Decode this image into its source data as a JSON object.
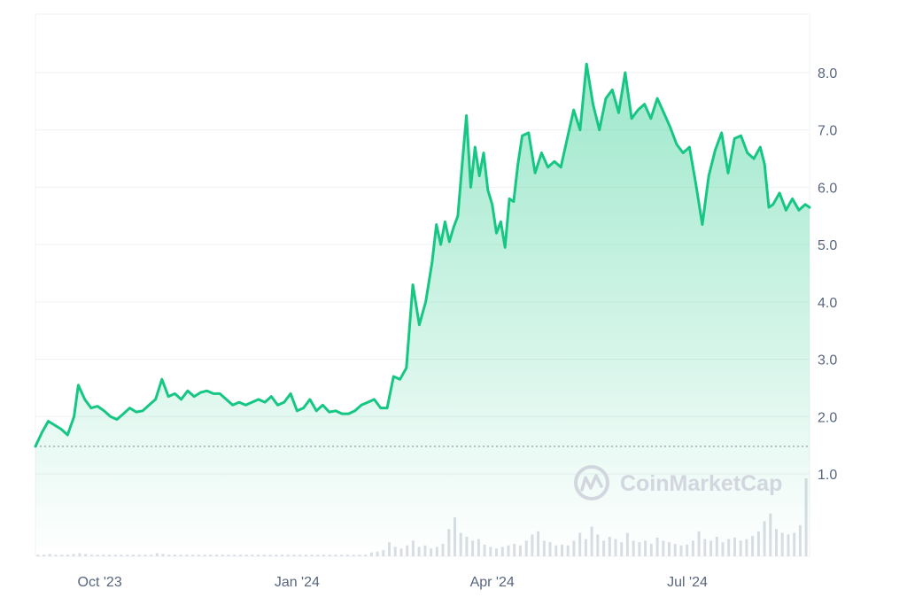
{
  "chart_data": {
    "type": "area",
    "watermark": "CoinMarketCap",
    "y_ticks": [
      "1.0",
      "2.0",
      "3.0",
      "4.0",
      "5.0",
      "6.0",
      "7.0",
      "8.0"
    ],
    "ylim": [
      0,
      9
    ],
    "baseline_value": 1.48,
    "grid": true,
    "x_ticks": [
      {
        "label": "Oct '23",
        "date": "2023-10-01"
      },
      {
        "label": "Jan '24",
        "date": "2024-01-01"
      },
      {
        "label": "Apr '24",
        "date": "2024-04-01"
      },
      {
        "label": "Jul '24",
        "date": "2024-07-01"
      }
    ],
    "xlim": [
      "2023-09-01",
      "2024-08-27"
    ],
    "colors": {
      "line": "#16c784",
      "fill": "#16c784",
      "grid": "#eff2f5",
      "axis_text": "#58667e",
      "baseline": "#8a919e",
      "volume": "#d9dde3"
    },
    "series": [
      {
        "x": [
          "2023-09-01",
          "2023-09-04",
          "2023-09-07",
          "2023-09-10",
          "2023-09-13",
          "2023-09-16",
          "2023-09-19",
          "2023-09-21",
          "2023-09-24",
          "2023-09-27",
          "2023-09-30",
          "2023-10-03",
          "2023-10-06",
          "2023-10-09",
          "2023-10-12",
          "2023-10-15",
          "2023-10-18",
          "2023-10-21",
          "2023-10-24",
          "2023-10-27",
          "2023-10-30",
          "2023-11-02",
          "2023-11-05",
          "2023-11-08",
          "2023-11-11",
          "2023-11-14",
          "2023-11-17",
          "2023-11-20",
          "2023-11-23",
          "2023-11-26",
          "2023-11-29",
          "2023-12-02",
          "2023-12-05",
          "2023-12-08",
          "2023-12-11",
          "2023-12-14",
          "2023-12-17",
          "2023-12-20",
          "2023-12-23",
          "2023-12-26",
          "2023-12-29",
          "2024-01-01",
          "2024-01-04",
          "2024-01-07",
          "2024-01-10",
          "2024-01-13",
          "2024-01-16",
          "2024-01-19",
          "2024-01-22",
          "2024-01-25",
          "2024-01-28",
          "2024-01-31",
          "2024-02-03",
          "2024-02-06",
          "2024-02-09",
          "2024-02-12",
          "2024-02-15",
          "2024-02-18",
          "2024-02-21",
          "2024-02-24",
          "2024-02-27",
          "2024-03-01",
          "2024-03-04",
          "2024-03-06",
          "2024-03-08",
          "2024-03-10",
          "2024-03-12",
          "2024-03-14",
          "2024-03-16",
          "2024-03-18",
          "2024-03-20",
          "2024-03-22",
          "2024-03-24",
          "2024-03-26",
          "2024-03-28",
          "2024-03-30",
          "2024-04-01",
          "2024-04-03",
          "2024-04-05",
          "2024-04-07",
          "2024-04-09",
          "2024-04-11",
          "2024-04-13",
          "2024-04-15",
          "2024-04-18",
          "2024-04-21",
          "2024-04-24",
          "2024-04-27",
          "2024-04-30",
          "2024-05-03",
          "2024-05-06",
          "2024-05-09",
          "2024-05-12",
          "2024-05-15",
          "2024-05-18",
          "2024-05-21",
          "2024-05-24",
          "2024-05-27",
          "2024-05-30",
          "2024-06-02",
          "2024-06-05",
          "2024-06-08",
          "2024-06-11",
          "2024-06-14",
          "2024-06-17",
          "2024-06-20",
          "2024-06-23",
          "2024-06-26",
          "2024-06-29",
          "2024-07-02",
          "2024-07-05",
          "2024-07-08",
          "2024-07-11",
          "2024-07-14",
          "2024-07-17",
          "2024-07-20",
          "2024-07-23",
          "2024-07-26",
          "2024-07-29",
          "2024-08-01",
          "2024-08-04",
          "2024-08-06",
          "2024-08-08",
          "2024-08-10",
          "2024-08-13",
          "2024-08-16",
          "2024-08-19",
          "2024-08-22",
          "2024-08-25",
          "2024-08-27"
        ],
        "values": [
          1.48,
          1.72,
          1.92,
          1.85,
          1.78,
          1.68,
          2.0,
          2.55,
          2.3,
          2.15,
          2.18,
          2.1,
          2.0,
          1.95,
          2.05,
          2.15,
          2.08,
          2.1,
          2.2,
          2.3,
          2.65,
          2.35,
          2.4,
          2.3,
          2.45,
          2.35,
          2.42,
          2.45,
          2.4,
          2.4,
          2.3,
          2.2,
          2.25,
          2.2,
          2.25,
          2.3,
          2.25,
          2.35,
          2.2,
          2.25,
          2.4,
          2.1,
          2.15,
          2.3,
          2.1,
          2.2,
          2.08,
          2.1,
          2.05,
          2.05,
          2.1,
          2.2,
          2.25,
          2.3,
          2.15,
          2.15,
          2.7,
          2.65,
          2.85,
          4.3,
          3.6,
          4.0,
          4.7,
          5.35,
          5.0,
          5.4,
          5.05,
          5.3,
          5.5,
          6.4,
          7.25,
          6.0,
          6.7,
          6.2,
          6.6,
          5.95,
          5.7,
          5.2,
          5.4,
          4.95,
          5.8,
          5.75,
          6.4,
          6.9,
          6.95,
          6.25,
          6.6,
          6.35,
          6.45,
          6.35,
          6.85,
          7.35,
          7.0,
          8.15,
          7.45,
          7.0,
          7.55,
          7.7,
          7.3,
          8.0,
          7.2,
          7.35,
          7.45,
          7.2,
          7.55,
          7.3,
          7.05,
          6.75,
          6.6,
          6.7,
          6.05,
          5.35,
          6.2,
          6.65,
          6.95,
          6.25,
          6.85,
          6.9,
          6.6,
          6.5,
          6.7,
          6.4,
          5.65,
          5.7,
          5.9,
          5.6,
          5.8,
          5.6,
          5.7,
          5.65
        ]
      }
    ],
    "volume_note": "relative volume bars",
    "volume": [
      0.02,
      0.02,
      0.03,
      0.02,
      0.02,
      0.02,
      0.03,
      0.04,
      0.03,
      0.02,
      0.02,
      0.02,
      0.02,
      0.02,
      0.02,
      0.02,
      0.02,
      0.02,
      0.02,
      0.02,
      0.04,
      0.03,
      0.02,
      0.02,
      0.02,
      0.02,
      0.02,
      0.02,
      0.02,
      0.02,
      0.02,
      0.02,
      0.02,
      0.02,
      0.02,
      0.02,
      0.02,
      0.02,
      0.02,
      0.02,
      0.02,
      0.02,
      0.02,
      0.02,
      0.02,
      0.02,
      0.02,
      0.02,
      0.02,
      0.02,
      0.02,
      0.02,
      0.02,
      0.02,
      0.02,
      0.02,
      0.05,
      0.06,
      0.08,
      0.18,
      0.12,
      0.1,
      0.14,
      0.2,
      0.12,
      0.14,
      0.1,
      0.12,
      0.16,
      0.35,
      0.5,
      0.3,
      0.25,
      0.2,
      0.22,
      0.15,
      0.12,
      0.1,
      0.12,
      0.14,
      0.16,
      0.14,
      0.2,
      0.28,
      0.32,
      0.2,
      0.18,
      0.14,
      0.15,
      0.14,
      0.2,
      0.3,
      0.22,
      0.38,
      0.28,
      0.2,
      0.25,
      0.22,
      0.18,
      0.3,
      0.2,
      0.18,
      0.2,
      0.16,
      0.24,
      0.2,
      0.18,
      0.16,
      0.14,
      0.15,
      0.2,
      0.32,
      0.22,
      0.2,
      0.25,
      0.18,
      0.22,
      0.24,
      0.2,
      0.22,
      0.26,
      0.32,
      0.45,
      0.55,
      0.35,
      0.3,
      0.28,
      0.3,
      0.4,
      1.0
    ]
  }
}
